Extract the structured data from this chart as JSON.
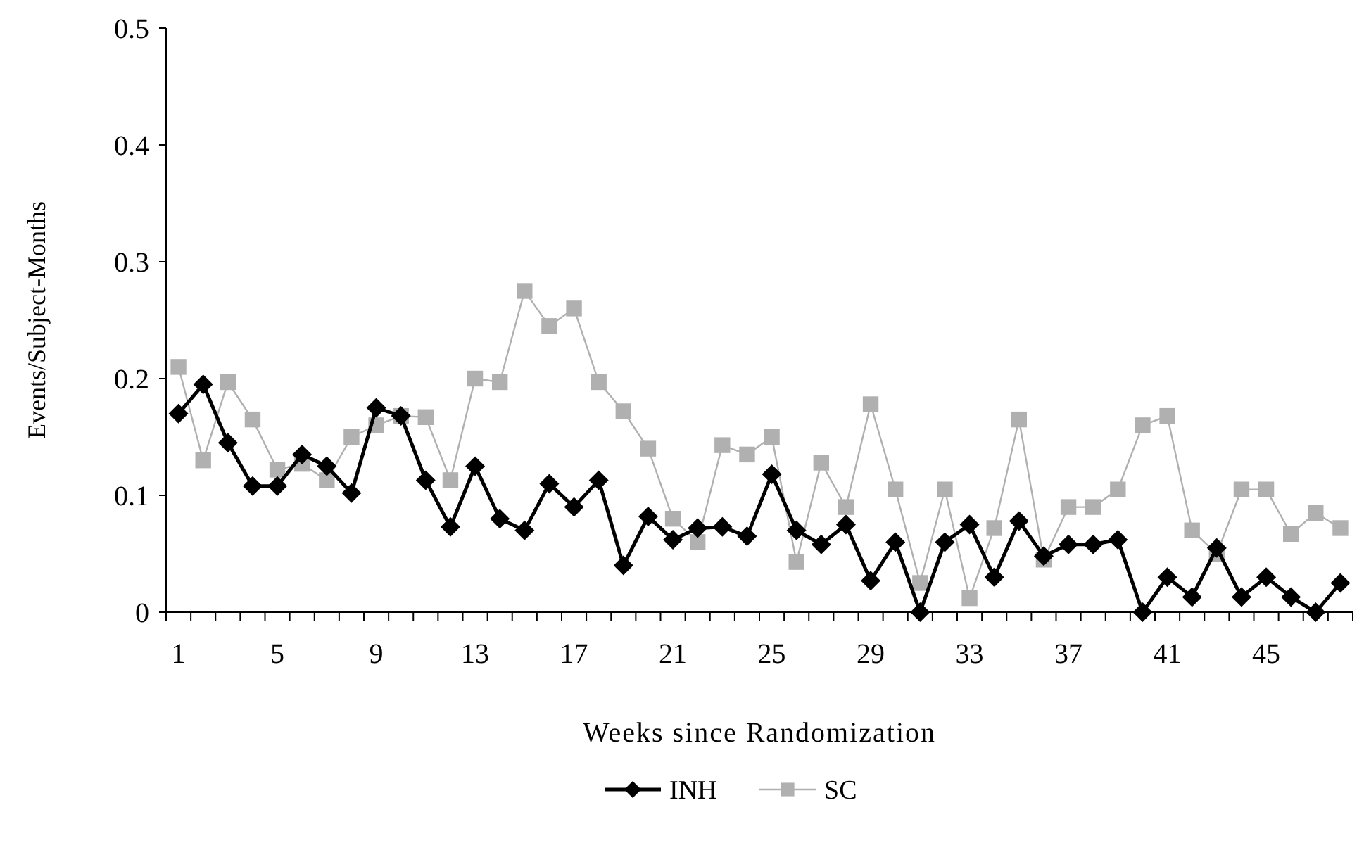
{
  "chart_data": {
    "type": "line",
    "xlabel": "Weeks since Randomization",
    "ylabel": "Events/Subject-Months",
    "categories": [
      "1",
      null,
      null,
      null,
      "5",
      null,
      null,
      null,
      "9",
      null,
      null,
      null,
      "13",
      null,
      null,
      null,
      "17",
      null,
      null,
      null,
      "21",
      null,
      null,
      null,
      "25",
      null,
      null,
      null,
      "29",
      null,
      null,
      null,
      "33",
      null,
      null,
      null,
      "37",
      null,
      null,
      null,
      "41",
      null,
      null,
      null,
      "45",
      null,
      null,
      null
    ],
    "series": [
      {
        "name": "INH",
        "color": "#000000",
        "marker": "diamond",
        "values": [
          0.17,
          0.195,
          0.145,
          0.108,
          0.108,
          0.135,
          0.125,
          0.102,
          0.175,
          0.168,
          0.113,
          0.073,
          0.125,
          0.08,
          0.07,
          0.11,
          0.09,
          0.113,
          0.04,
          0.082,
          0.062,
          0.072,
          0.073,
          0.065,
          0.118,
          0.07,
          0.058,
          0.075,
          0.027,
          0.06,
          0,
          0.06,
          0.075,
          0.03,
          0.078,
          0.048,
          0.058,
          0.058,
          0.062,
          0,
          0.03,
          0.013,
          0.055,
          0.013,
          0.03,
          0.013,
          0,
          0.025
        ]
      },
      {
        "name": "SC",
        "color": "#b0b0b0",
        "marker": "square",
        "values": [
          0.21,
          0.13,
          0.197,
          0.165,
          0.122,
          0.127,
          0.113,
          0.15,
          0.16,
          0.168,
          0.167,
          0.113,
          0.2,
          0.197,
          0.275,
          0.245,
          0.26,
          0.197,
          0.172,
          0.14,
          0.08,
          0.06,
          0.143,
          0.135,
          0.15,
          0.043,
          0.128,
          0.09,
          0.178,
          0.105,
          0.025,
          0.105,
          0.012,
          0.072,
          0.165,
          0.045,
          0.09,
          0.09,
          0.105,
          0.16,
          0.168,
          0.07,
          0.05,
          0.105,
          0.105,
          0.067,
          0.085,
          0.072
        ]
      }
    ],
    "ylim": [
      0,
      0.5
    ],
    "yticks": [
      0,
      0.1,
      0.2,
      0.3,
      0.4,
      0.5
    ],
    "grid": false,
    "legend": "bottom",
    "line_style": "solid"
  }
}
